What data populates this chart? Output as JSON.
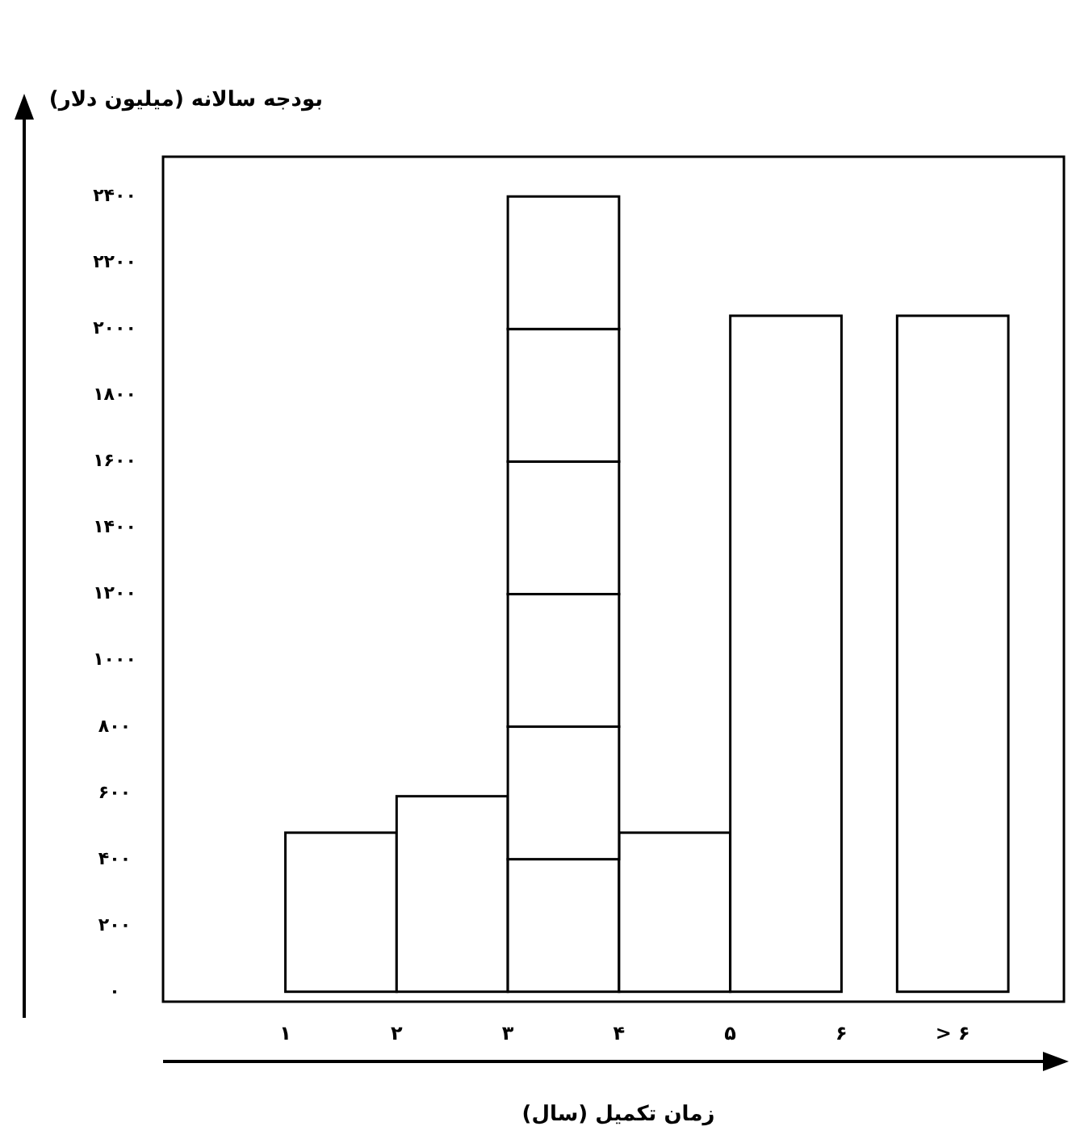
{
  "chart_data": {
    "type": "bar",
    "stacked": true,
    "xlabel": "زمان تکمیل (سال)",
    "ylabel": "بودجه سالانه (میلیون دلار)",
    "x": [
      1.5,
      2.5,
      3.5,
      4.5,
      5.5,
      7
    ],
    "series": [
      {
        "color": "#ffffff",
        "values": [
          480,
          590,
          400,
          480,
          2040,
          2040
        ]
      },
      {
        "color": "#ffffff",
        "values": [
          null,
          null,
          400,
          null,
          null,
          null
        ]
      },
      {
        "color": "#ffffff",
        "values": [
          null,
          null,
          400,
          null,
          null,
          null
        ]
      },
      {
        "color": "#ffffff",
        "values": [
          null,
          null,
          400,
          null,
          null,
          null
        ]
      },
      {
        "color": "#ffffff",
        "values": [
          null,
          null,
          400,
          null,
          null,
          null
        ]
      },
      {
        "color": "#ffffff",
        "values": [
          null,
          null,
          400,
          null,
          null,
          null
        ]
      }
    ],
    "xlim": [
      -0.1,
      8
    ],
    "xticks": [
      {
        "value": 1,
        "label": "۱"
      },
      {
        "value": 2,
        "label": "۲"
      },
      {
        "value": 3,
        "label": "۳"
      },
      {
        "value": 4,
        "label": "۴"
      },
      {
        "value": 5,
        "label": "۵"
      },
      {
        "value": 6,
        "label": "۶"
      },
      {
        "value": 7,
        "label": "> ۶"
      }
    ],
    "ylim": [
      -30,
      2520
    ],
    "yticks": [
      {
        "value": 0,
        "label": "۰"
      },
      {
        "value": 200,
        "label": "۲۰۰"
      },
      {
        "value": 400,
        "label": "۴۰۰"
      },
      {
        "value": 600,
        "label": "۶۰۰"
      },
      {
        "value": 800,
        "label": "۸۰۰"
      },
      {
        "value": 1000,
        "label": "۱۰۰۰"
      },
      {
        "value": 1200,
        "label": "۱۲۰۰"
      },
      {
        "value": 1400,
        "label": "۱۴۰۰"
      },
      {
        "value": 1600,
        "label": "۱۶۰۰"
      },
      {
        "value": 1800,
        "label": "۱۸۰۰"
      },
      {
        "value": 2000,
        "label": "۲۰۰۰"
      },
      {
        "value": 2200,
        "label": "۲۲۰۰"
      },
      {
        "value": 2400,
        "label": "۲۴۰۰"
      }
    ],
    "grid": false
  }
}
